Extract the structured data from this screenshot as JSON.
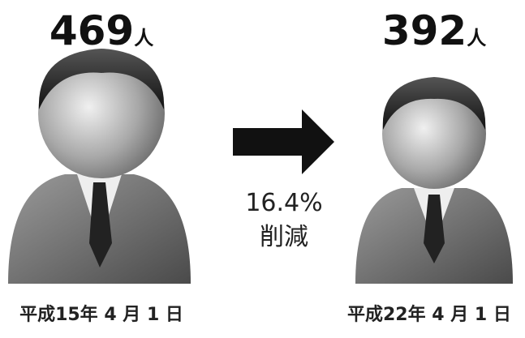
{
  "before": {
    "count": "469",
    "unit": "人",
    "date": "平成15年 4 月 1 日"
  },
  "change": {
    "rate": "16.4%",
    "label": "削減"
  },
  "after": {
    "count": "392",
    "unit": "人",
    "date": "平成22年 4 月 1 日"
  }
}
